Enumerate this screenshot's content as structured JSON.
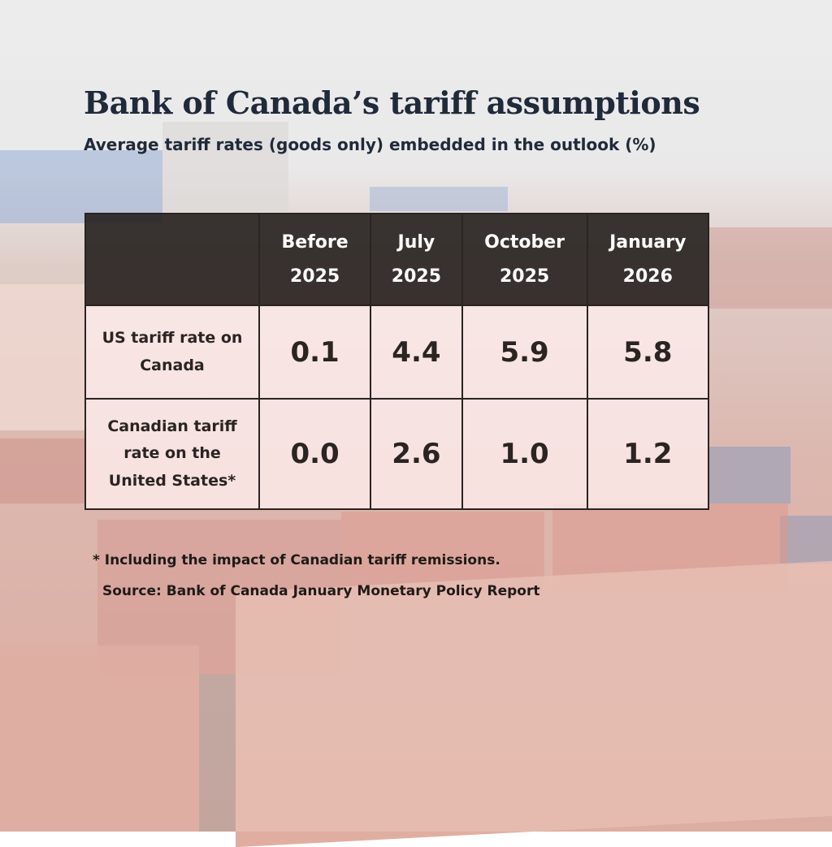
{
  "header": {
    "title": "Bank of Canada’s tariff assumptions",
    "subtitle": "Average tariff rates (goods only) embedded in the outlook (%)"
  },
  "table": {
    "columns": [
      "Before 2025",
      "July 2025",
      "October 2025",
      "January 2026"
    ],
    "rows": [
      [
        "US tariff rate on Canada",
        "0.1",
        "4.4",
        "5.9",
        "5.8"
      ],
      [
        "Canadian tariff rate on the United States*",
        "0.0",
        "2.6",
        "1.0",
        "1.2"
      ]
    ]
  },
  "footnotes": {
    "note": "* Including the impact of Canadian tariff remissions.",
    "source": "Source: Bank of Canada January Monetary Policy Report"
  }
}
